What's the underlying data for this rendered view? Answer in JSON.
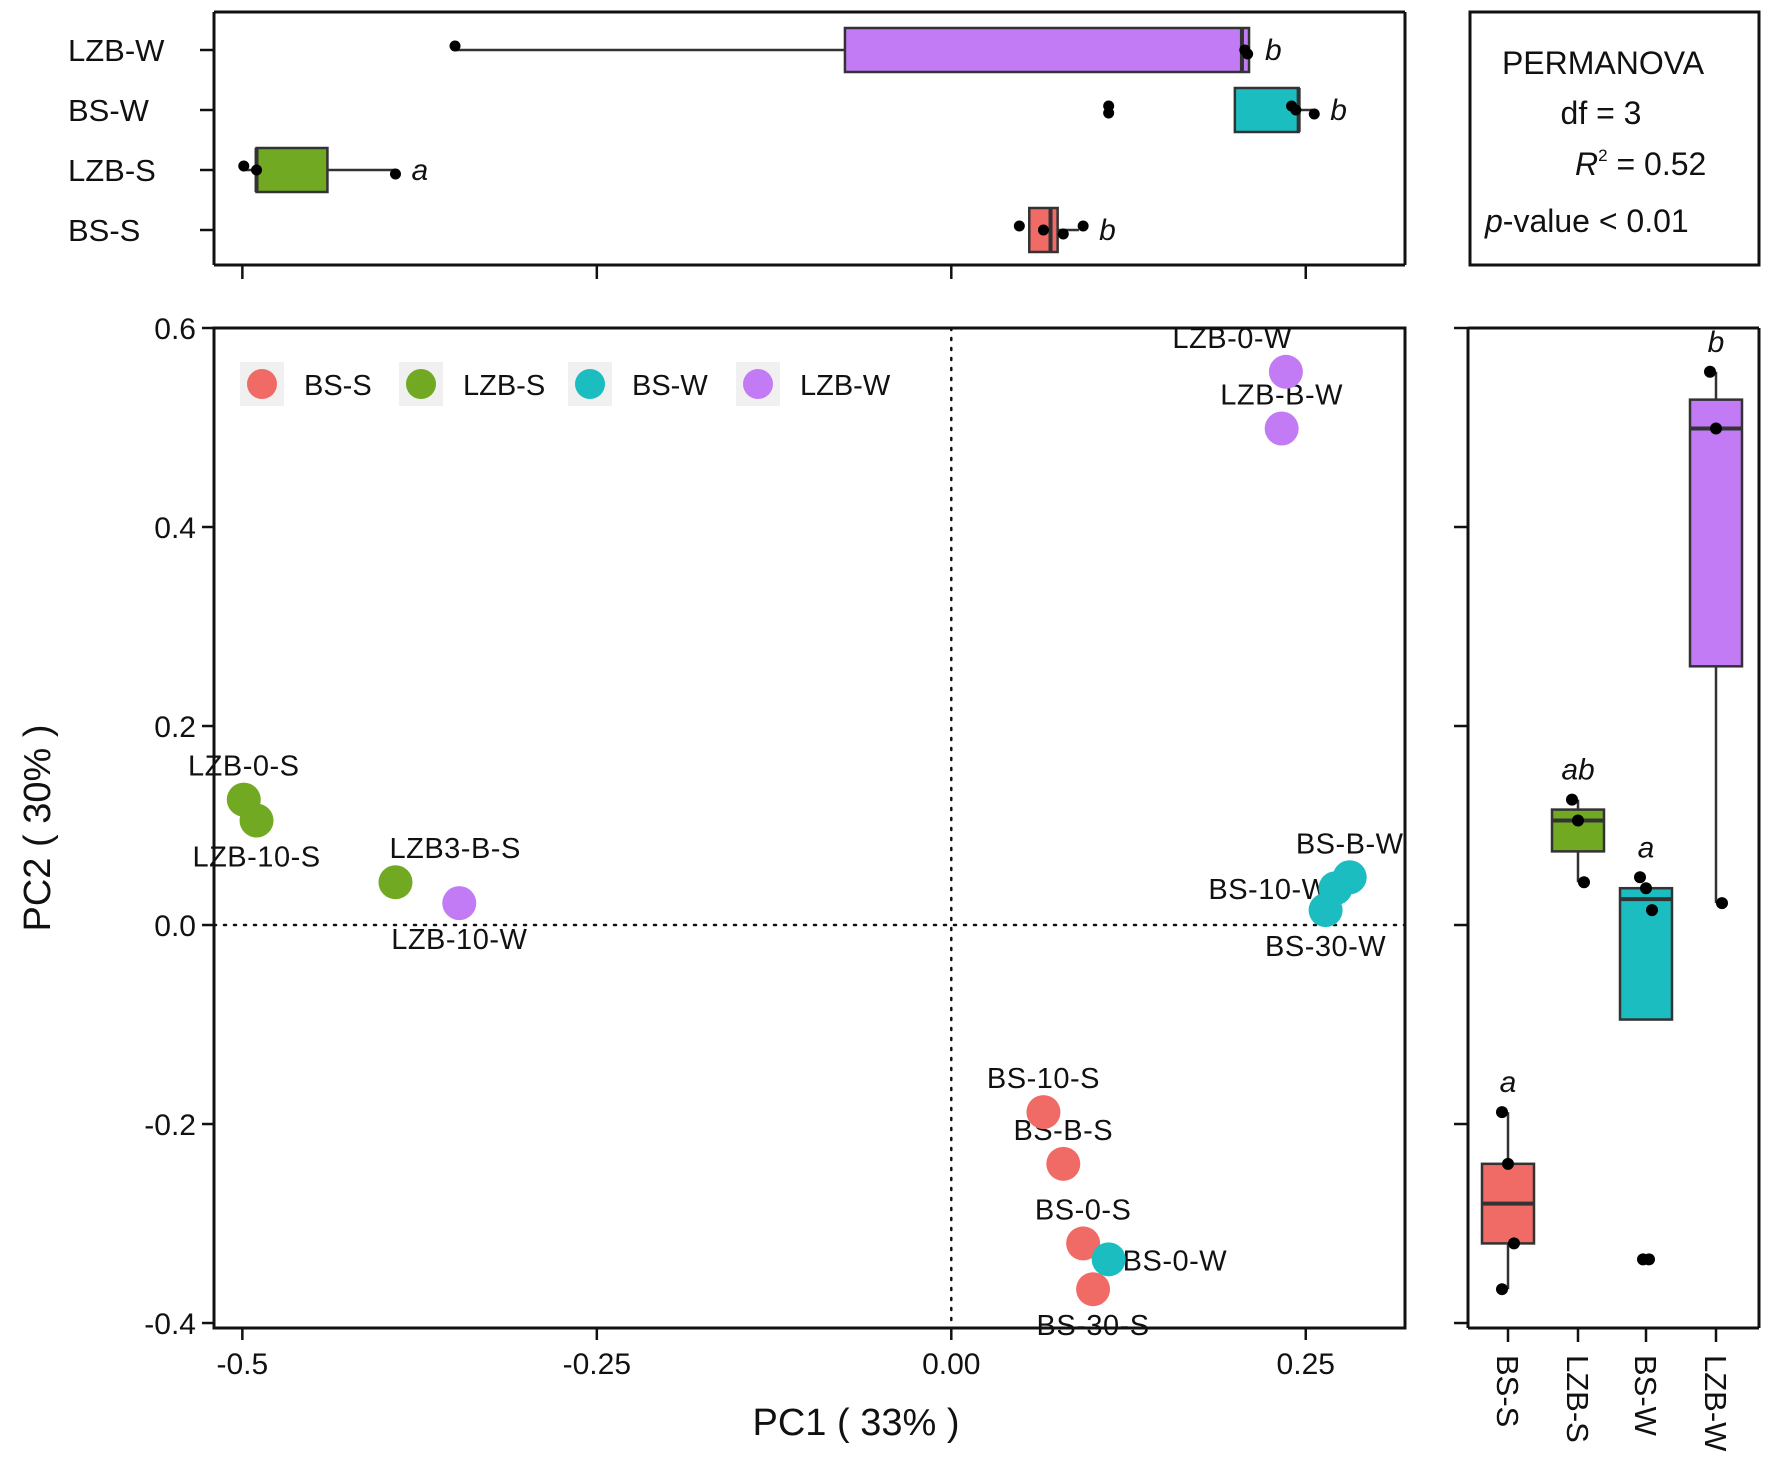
{
  "colors": {
    "BS-S": "#F06B66",
    "LZB-S": "#71A922",
    "BS-W": "#1BBDC1",
    "LZB-W": "#C27BF4",
    "point": "#000000"
  },
  "chart_data": [
    {
      "id": "scatter",
      "type": "scatter",
      "title": "",
      "xlabel": "PC1 ( 33% )",
      "ylabel": "PC2 ( 30% )",
      "xlim": [
        -0.52,
        0.32
      ],
      "ylim": [
        -0.405,
        0.6
      ],
      "xticks": [
        -0.5,
        -0.25,
        0.0,
        0.25
      ],
      "xtick_labels": [
        "-0.5",
        "-0.25",
        "0.00",
        "0.25"
      ],
      "yticks": [
        -0.4,
        -0.2,
        0.0,
        0.2,
        0.4,
        0.6
      ],
      "ytick_labels": [
        "-0.4",
        "-0.2",
        "0.0",
        "0.2",
        "0.4",
        "0.6"
      ],
      "reference_lines": {
        "x": 0.0,
        "y": 0.0
      },
      "legend": {
        "position": "top-left",
        "entries": [
          "BS-S",
          "LZB-S",
          "BS-W",
          "LZB-W"
        ]
      },
      "points": [
        {
          "group": "LZB-W",
          "label": "LZB-0-W",
          "x": 0.236,
          "y": 0.556,
          "label_anchor": "end",
          "label_side": "above"
        },
        {
          "group": "LZB-W",
          "label": "LZB-B-W",
          "x": 0.233,
          "y": 0.499,
          "label_anchor": "center",
          "label_side": "above"
        },
        {
          "group": "LZB-S",
          "label": "LZB-0-S",
          "x": -0.499,
          "y": 0.126,
          "label_anchor": "center",
          "label_side": "above"
        },
        {
          "group": "LZB-S",
          "label": "LZB-10-S",
          "x": -0.49,
          "y": 0.105,
          "label_anchor": "center",
          "label_side": "below"
        },
        {
          "group": "LZB-S",
          "label": "LZB3-B-S",
          "x": -0.392,
          "y": 0.043,
          "label_anchor": "start",
          "label_side": "above"
        },
        {
          "group": "LZB-W",
          "label": "LZB-10-W",
          "x": -0.347,
          "y": 0.022,
          "label_anchor": "center",
          "label_side": "below"
        },
        {
          "group": "BS-W",
          "label": "BS-B-W",
          "x": 0.281,
          "y": 0.048,
          "label_anchor": "center",
          "label_side": "above"
        },
        {
          "group": "BS-W",
          "label": "BS-10-W",
          "x": 0.271,
          "y": 0.037,
          "label_anchor": "end",
          "label_side": "beside"
        },
        {
          "group": "BS-W",
          "label": "BS-30-W",
          "x": 0.264,
          "y": 0.015,
          "label_anchor": "center",
          "label_side": "below"
        },
        {
          "group": "BS-S",
          "label": "BS-10-S",
          "x": 0.065,
          "y": -0.188,
          "label_anchor": "center",
          "label_side": "above"
        },
        {
          "group": "BS-S",
          "label": "BS-B-S",
          "x": 0.079,
          "y": -0.24,
          "label_anchor": "center",
          "label_side": "above"
        },
        {
          "group": "BS-S",
          "label": "BS-0-S",
          "x": 0.093,
          "y": -0.32,
          "label_anchor": "center",
          "label_side": "above"
        },
        {
          "group": "BS-W",
          "label": "BS-0-W",
          "x": 0.111,
          "y": -0.336,
          "label_anchor": "start",
          "label_side": "beside"
        },
        {
          "group": "BS-S",
          "label": "BS-30-S",
          "x": 0.1,
          "y": -0.366,
          "label_anchor": "center",
          "label_side": "below"
        }
      ]
    },
    {
      "id": "top-boxplot",
      "type": "boxplot",
      "orientation": "horizontal",
      "axis": "PC1",
      "xlim": [
        -0.52,
        0.32
      ],
      "categories": [
        "LZB-W",
        "BS-W",
        "LZB-S",
        "BS-S"
      ],
      "boxes": [
        {
          "group": "LZB-W",
          "min": -0.35,
          "q1": -0.075,
          "median": 0.205,
          "q3": 0.21,
          "max": 0.21,
          "letter": "b",
          "points": [
            -0.35,
            0.207,
            0.209
          ],
          "outliers": []
        },
        {
          "group": "BS-W",
          "min": 0.2,
          "q1": 0.2,
          "median": 0.245,
          "q3": 0.245,
          "max": 0.255,
          "letter": "b",
          "points": [
            0.24,
            0.243,
            0.256
          ],
          "outliers": [
            0.111
          ]
        },
        {
          "group": "LZB-S",
          "min": -0.5,
          "q1": -0.49,
          "median": -0.49,
          "q3": -0.44,
          "max": -0.392,
          "letter": "a",
          "points": [
            -0.499,
            -0.49,
            -0.392
          ],
          "outliers": []
        },
        {
          "group": "BS-S",
          "min": 0.055,
          "q1": 0.055,
          "median": 0.07,
          "q3": 0.075,
          "max": 0.09,
          "letter": "b",
          "points": [
            0.048,
            0.065,
            0.079,
            0.093
          ],
          "outliers": []
        }
      ]
    },
    {
      "id": "right-boxplot",
      "type": "boxplot",
      "orientation": "vertical",
      "axis": "PC2",
      "ylim": [
        -0.405,
        0.6
      ],
      "categories": [
        "BS-S",
        "LZB-S",
        "BS-W",
        "LZB-W"
      ],
      "boxes": [
        {
          "group": "BS-S",
          "min": -0.366,
          "q1": -0.32,
          "median": -0.28,
          "q3": -0.24,
          "max": -0.188,
          "letter": "a",
          "points": [
            -0.188,
            -0.24,
            -0.32,
            -0.366
          ],
          "outliers": []
        },
        {
          "group": "LZB-S",
          "min": 0.043,
          "q1": 0.074,
          "median": 0.105,
          "q3": 0.116,
          "max": 0.126,
          "letter": "ab",
          "points": [
            0.126,
            0.105,
            0.043
          ],
          "outliers": []
        },
        {
          "group": "BS-W",
          "min": -0.095,
          "q1": -0.095,
          "median": 0.026,
          "q3": 0.037,
          "max": 0.037,
          "letter": "a",
          "points": [
            0.048,
            0.037,
            0.015
          ],
          "outliers": [
            -0.336
          ]
        },
        {
          "group": "LZB-W",
          "min": 0.022,
          "q1": 0.26,
          "median": 0.499,
          "q3": 0.528,
          "max": 0.556,
          "letter": "b",
          "points": [
            0.556,
            0.499,
            0.022
          ],
          "outliers": []
        }
      ]
    }
  ],
  "stats_box": {
    "title": "PERMANOVA",
    "df": "df = 3",
    "r2_symbol": "R",
    "r2_superscript": "2",
    "r2_value": " = 0.52",
    "p_symbol": "p",
    "p_value": "-value < 0.01"
  }
}
